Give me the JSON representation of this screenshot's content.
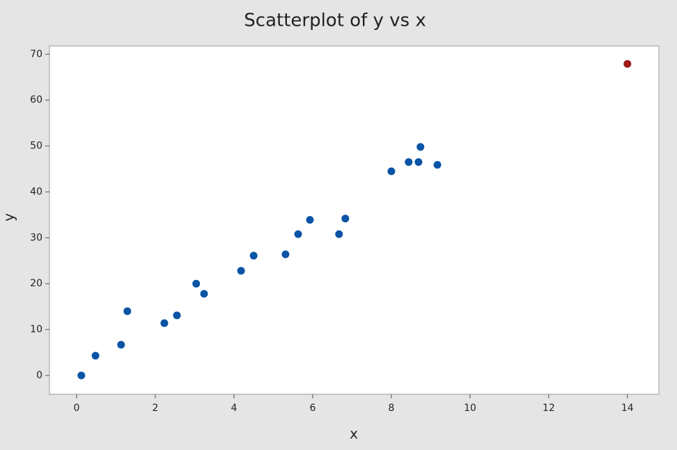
{
  "chart_data": {
    "type": "scatter",
    "title": "Scatterplot of y vs x",
    "x_label": "x",
    "y_label": "y",
    "x": [
      0.12,
      0.48,
      1.13,
      1.29,
      2.23,
      2.55,
      3.04,
      3.24,
      4.18,
      4.5,
      5.31,
      5.63,
      5.93,
      6.67,
      6.83,
      8.0,
      8.44,
      8.69,
      8.74,
      9.17,
      14.0
    ],
    "y": [
      0,
      4.3,
      6.7,
      14.0,
      11.4,
      13.1,
      20.0,
      17.8,
      22.8,
      26.1,
      26.4,
      30.8,
      33.9,
      30.8,
      34.2,
      44.5,
      46.5,
      46.5,
      49.8,
      45.9,
      67.9
    ],
    "colors": [
      "#0a54a6",
      "#0a54a6",
      "#0a54a6",
      "#0a54a6",
      "#0a54a6",
      "#0a54a6",
      "#0a54a6",
      "#0a54a6",
      "#0a54a6",
      "#0a54a6",
      "#0a54a6",
      "#0a54a6",
      "#0a54a6",
      "#0a54a6",
      "#0a54a6",
      "#0a54a6",
      "#0a54a6",
      "#0a54a6",
      "#0a54a6",
      "#0a54a6",
      "#9e1a1a"
    ],
    "xlim": [
      -0.69,
      14.8
    ],
    "ylim": [
      -4.1,
      71.8
    ],
    "xticks": [
      0,
      2,
      4,
      6,
      8,
      10,
      12,
      14
    ],
    "yticks": [
      0,
      10,
      20,
      30,
      40,
      50,
      60,
      70
    ]
  }
}
